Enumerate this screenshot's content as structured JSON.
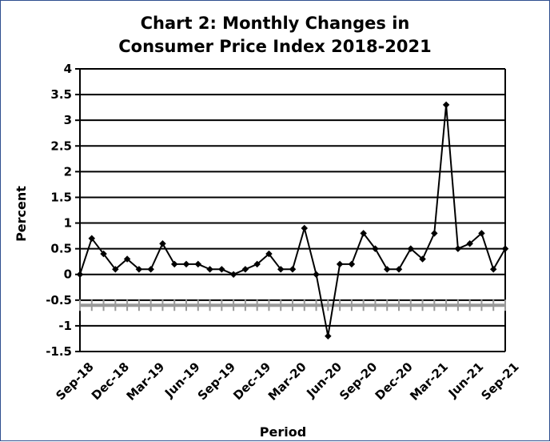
{
  "chart_data": {
    "type": "line",
    "title_line1": "Chart 2: Monthly Changes in",
    "title_line2": "Consumer Price Index 2018-2021",
    "xlabel": "Period",
    "ylabel": "Percent",
    "ylim": [
      -1.5,
      4
    ],
    "yticks": [
      "4",
      "3.5",
      "3",
      "2.5",
      "2",
      "1.5",
      "1",
      "0.5",
      "0",
      "-0.5",
      "-1",
      "-1.5"
    ],
    "xtick_labels": [
      "Sep-18",
      "Dec-18",
      "Mar-19",
      "Jun-19",
      "Sep-19",
      "Dec-19",
      "Mar-20",
      "Jun-20",
      "Sep-20",
      "Dec-20",
      "Mar-21",
      "Jun-21",
      "Sep-21"
    ],
    "grid": true,
    "series": [
      {
        "x": [
          "Sep-18",
          "Oct-18",
          "Nov-18",
          "Dec-18",
          "Jan-19",
          "Feb-19",
          "Mar-19",
          "Apr-19",
          "May-19",
          "Jun-19",
          "Jul-19",
          "Aug-19",
          "Sep-19",
          "Oct-19",
          "Nov-19",
          "Dec-19",
          "Jan-20",
          "Feb-20",
          "Mar-20",
          "Apr-20",
          "May-20",
          "Jun-20",
          "Jul-20",
          "Aug-20",
          "Sep-20",
          "Oct-20",
          "Nov-20",
          "Dec-20",
          "Jan-21",
          "Feb-21",
          "Mar-21",
          "Apr-21",
          "May-21",
          "Jun-21",
          "Jul-21",
          "Aug-21",
          "Sep-21"
        ],
        "values": [
          0.0,
          0.7,
          0.4,
          0.1,
          0.3,
          0.1,
          0.1,
          0.6,
          0.2,
          0.2,
          0.2,
          0.1,
          0.1,
          0.0,
          0.1,
          0.2,
          0.4,
          0.1,
          0.1,
          0.9,
          0.0,
          -1.2,
          0.2,
          0.2,
          0.8,
          0.5,
          0.1,
          0.1,
          0.5,
          0.3,
          0.8,
          3.3,
          0.5,
          0.6,
          0.8,
          0.1,
          0.5
        ],
        "color": "#000000"
      }
    ],
    "reference_line": {
      "value": -0.6,
      "color": "#999999",
      "style": "dashed-ticks"
    }
  }
}
